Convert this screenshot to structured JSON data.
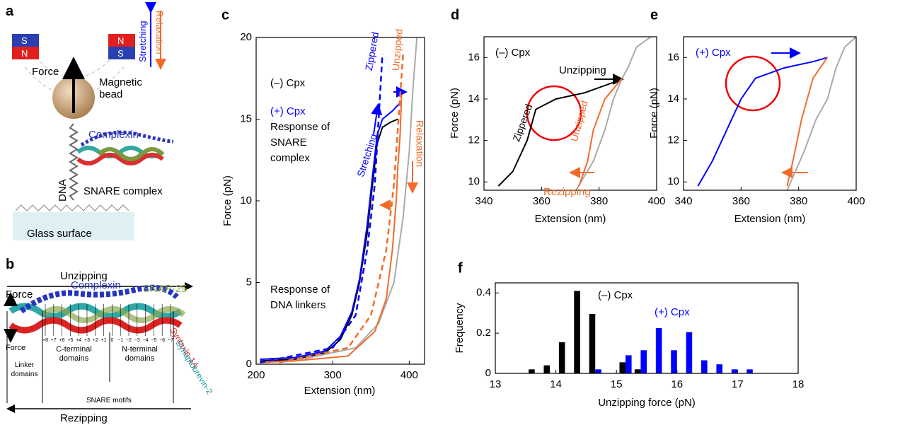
{
  "panels": {
    "a": {
      "label": "a",
      "force": "Force",
      "bead": "Magnetic bead",
      "complexin": "Complexin",
      "dna": "DNA",
      "snare": "SNARE complex",
      "glass": "Glass surface",
      "stretching": "Stretching",
      "relaxation": "Relaxation",
      "magnet_left": [
        "S",
        "N"
      ],
      "magnet_right": [
        "N",
        "S"
      ]
    },
    "b": {
      "label": "b",
      "unzipping": "Unzipping",
      "force_top": "Force",
      "complexin": "Complexin",
      "snap": "SNAP-25",
      "syntaxin": "Syntaxin-1A",
      "synaptobrevin": "Synaptobrevin-2",
      "force_bottom": "Force",
      "linker": "Linker domains",
      "cterm": "C-terminal domains",
      "nterm": "N-terminal domains",
      "motifs": "SNARE motifs",
      "rezipping": "Rezipping",
      "layers": [
        "+8",
        "+7",
        "+6",
        "+5",
        "+4",
        "+3",
        "+2",
        "+1",
        "0",
        "−1",
        "−2",
        "−3",
        "−4",
        "−5",
        "−6",
        "−7"
      ]
    }
  },
  "chart_data": [
    {
      "type": "line",
      "panel": "c",
      "xlabel": "Extension (nm)",
      "ylabel": "Force (pN)",
      "xlim": [
        200,
        420
      ],
      "ylim": [
        0,
        20
      ],
      "xticks": [
        200,
        300,
        400
      ],
      "yticks": [
        0,
        5,
        10,
        15,
        20
      ],
      "annotations": [
        "(–) Cpx",
        "(+) Cpx",
        "Response of",
        "SNARE",
        "complex",
        "Response of",
        "DNA linkers",
        "Zippered",
        "Unzipped",
        "Relaxation",
        "Stretching"
      ],
      "series": [
        {
          "color": "#aaaaaa",
          "x": [
            250,
            330,
            360,
            380,
            392,
            400,
            405,
            410
          ],
          "values": [
            0.2,
            1,
            2.5,
            5,
            9,
            13,
            17,
            20
          ]
        },
        {
          "color": "#000000",
          "x": [
            205,
            250,
            290,
            310,
            325,
            335,
            345,
            352,
            358,
            365,
            375,
            385
          ],
          "values": [
            0.2,
            0.3,
            0.7,
            1.5,
            3,
            5,
            8,
            11,
            13.5,
            14.5,
            14.8,
            15
          ]
        },
        {
          "color": "#0000ff",
          "x": [
            205,
            250,
            290,
            310,
            325,
            335,
            345,
            352,
            358,
            365,
            378,
            388
          ],
          "values": [
            0.3,
            0.4,
            0.8,
            1.7,
            3.2,
            5.2,
            8.5,
            11.5,
            14,
            15,
            15.5,
            16
          ]
        },
        {
          "color": "#f26b2a",
          "x": [
            390,
            388,
            385,
            383,
            378,
            370,
            355,
            320,
            250,
            205
          ],
          "values": [
            16.5,
            14,
            12,
            10,
            7,
            4,
            2,
            0.5,
            0.2,
            0.1
          ]
        },
        {
          "color": "#0000ff",
          "style": "dashed",
          "x": [
            205,
            300,
            330,
            345,
            355,
            360,
            365
          ],
          "values": [
            0.1,
            1,
            3,
            7,
            11,
            15,
            19
          ]
        },
        {
          "color": "#f26b2a",
          "style": "dashed",
          "x": [
            230,
            320,
            350,
            370,
            380,
            386,
            392
          ],
          "values": [
            0.1,
            1,
            3,
            7,
            11,
            15,
            19
          ]
        }
      ]
    },
    {
      "type": "line",
      "panel": "d",
      "xlabel": "Extension (nm)",
      "ylabel": "Force (pN)",
      "xlim": [
        340,
        400
      ],
      "ylim": [
        9.6,
        17
      ],
      "xticks": [
        340,
        360,
        380,
        400
      ],
      "yticks": [
        10,
        12,
        14,
        16
      ],
      "annotations": [
        "(–) Cpx",
        "Unzipping",
        "Zippered",
        "Unzipped",
        "Rezipping"
      ],
      "series": [
        {
          "color": "#aaaaaa",
          "x": [
            372,
            378,
            382,
            385,
            388,
            390,
            393,
            398
          ],
          "values": [
            9.6,
            11,
            12.5,
            14,
            15,
            15.5,
            16.5,
            17
          ]
        },
        {
          "color": "#000000",
          "x": [
            345,
            350,
            355,
            358,
            365,
            375,
            385,
            388
          ],
          "values": [
            9.8,
            10.5,
            12,
            13.5,
            14,
            14.3,
            14.8,
            15
          ]
        },
        {
          "color": "#f26b2a",
          "x": [
            388,
            382,
            378,
            376,
            373
          ],
          "values": [
            15,
            14,
            12.5,
            11,
            9.8
          ]
        }
      ]
    },
    {
      "type": "line",
      "panel": "e",
      "xlabel": "Extension (nm)",
      "ylabel": "Force (pN)",
      "xlim": [
        340,
        400
      ],
      "ylim": [
        9.6,
        17
      ],
      "xticks": [
        340,
        360,
        380,
        400
      ],
      "yticks": [
        10,
        12,
        14,
        16
      ],
      "annotations": [
        "(+) Cpx"
      ],
      "series": [
        {
          "color": "#aaaaaa",
          "x": [
            376,
            382,
            386,
            390,
            393,
            396,
            400
          ],
          "values": [
            9.6,
            11.5,
            13,
            14,
            15.5,
            16.5,
            17
          ]
        },
        {
          "color": "#0000ff",
          "x": [
            345,
            350,
            355,
            360,
            365,
            375,
            385,
            390
          ],
          "values": [
            9.8,
            11,
            12.5,
            14,
            15,
            15.5,
            15.8,
            16
          ]
        },
        {
          "color": "#f26b2a",
          "x": [
            390,
            385,
            381,
            378,
            376
          ],
          "values": [
            16,
            15,
            13,
            11,
            9.8
          ]
        }
      ]
    },
    {
      "type": "bar",
      "panel": "f",
      "xlabel": "Unzipping force (pN)",
      "ylabel": "Frequency",
      "xlim": [
        13,
        18
      ],
      "ylim": [
        0,
        0.45
      ],
      "xticks": [
        13,
        14,
        15,
        16,
        17,
        18
      ],
      "yticks": [
        0,
        0.2,
        0.4
      ],
      "series": [
        {
          "name": "(–) Cpx",
          "color": "#000000",
          "x": [
            13.6,
            13.85,
            14.1,
            14.35,
            14.6,
            15.1,
            15.35
          ],
          "values": [
            0.02,
            0.04,
            0.155,
            0.41,
            0.295,
            0.055,
            0.02
          ]
        },
        {
          "name": "(+) Cpx",
          "color": "#0000ff",
          "x": [
            14.7,
            15.2,
            15.45,
            15.7,
            15.95,
            16.2,
            16.45,
            16.7,
            16.95,
            17.2
          ],
          "values": [
            0.02,
            0.09,
            0.115,
            0.225,
            0.115,
            0.205,
            0.065,
            0.045,
            0.02,
            0.02
          ]
        }
      ]
    }
  ]
}
